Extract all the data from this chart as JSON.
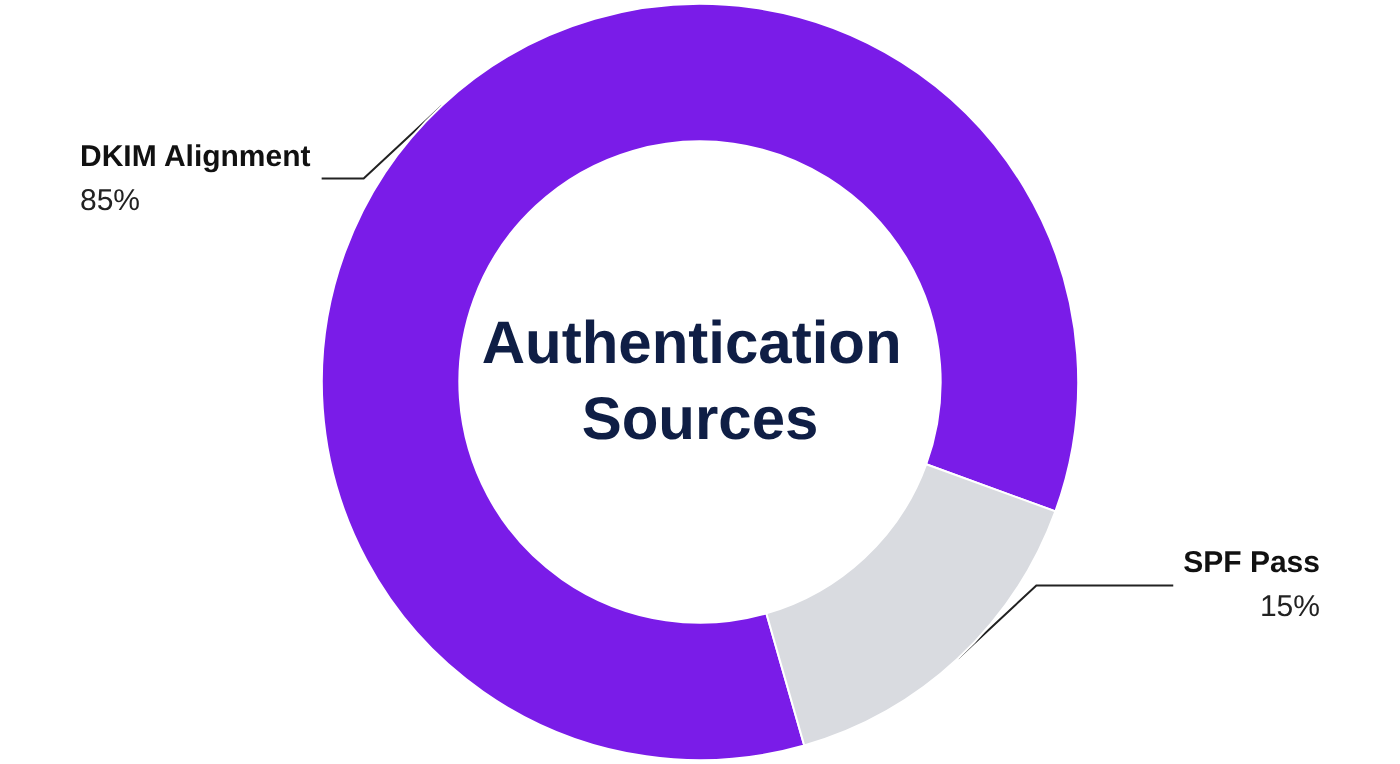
{
  "chart_data": {
    "type": "donut",
    "title": "Authentication Sources",
    "categories": [
      "DKIM Alignment",
      "SPF Pass"
    ],
    "values": [
      85,
      15
    ],
    "value_labels": [
      "85%",
      "15%"
    ],
    "colors": [
      "#7a1ce8",
      "#d9dbe0"
    ],
    "legend": false
  }
}
